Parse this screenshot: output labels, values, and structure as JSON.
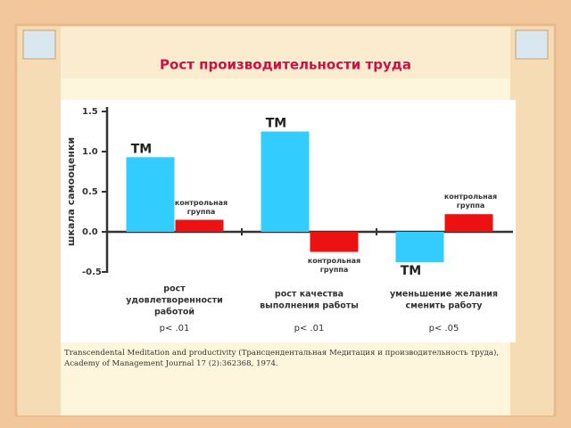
{
  "chart_data": {
    "type": "bar",
    "title": "Рост производительности труда",
    "y_label": "шкала самооценки",
    "categories": [
      [
        "рост",
        "удовлетворенности",
        "работой"
      ],
      [
        "рост качества",
        "выполнения работы"
      ],
      [
        "уменьшение желания",
        "сменить работу"
      ]
    ],
    "p_values": [
      "p< .01",
      "p< .01",
      "p< .05"
    ],
    "series": [
      {
        "name": "ТМ",
        "color": "#33ccff",
        "values": [
          0.93,
          1.25,
          -0.38
        ]
      },
      {
        "name": "контрольная группа",
        "color": "#ee1111",
        "values": [
          0.15,
          -0.25,
          0.22
        ]
      }
    ],
    "ylim": [
      -0.5,
      1.5
    ],
    "yticks": [
      {
        "value": -0.5,
        "label": "-0.5"
      },
      {
        "value": 0,
        "label": "0.0"
      },
      0.5,
      {
        "value": 1,
        "label": "1.0"
      },
      1.5
    ],
    "source": "Transcendental Meditation and productivity (Трансцендентальная Медитация и производительность труда), Academy of Management Journal 17 (2):362368, 1974."
  }
}
